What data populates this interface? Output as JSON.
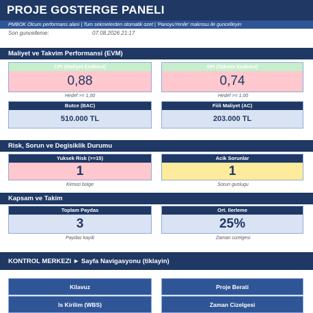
{
  "header": {
    "title": "PROJE GOSTERGE PANELI",
    "subtitle": "PMBOK Olcum performans alani  |  Tum sekmelerden otomatik ozet  |  'PanoyuYenile' makrosu ile guncelleyin",
    "last_updated_label": "Son guncelleme:",
    "last_updated": "07.08.2026 21:17"
  },
  "sections": [
    {
      "title": "Maliyet ve Takvim Performansi (EVM)",
      "cards": [
        {
          "label": "CPI (Maliyet Endeksi)",
          "value": "0,88",
          "note": "Hedef >= 1,00"
        },
        {
          "label": "SPI (Takvim Endeksi)",
          "value": "0,74",
          "note": "Hedef >= 1,00"
        },
        {
          "label": "Butce (BAC)",
          "value": "510.000 TL"
        },
        {
          "label": "Fiili Maliyet (AC)",
          "value": "203.000 TL"
        }
      ]
    },
    {
      "title": "Risk, Sorun ve Degisiklik Durumu",
      "cards": [
        {
          "label": "Yuksek Risk (>=15)",
          "value": "1",
          "note": "Kirmizi bolge"
        },
        {
          "label": "Acik Sorunlar",
          "value": "1",
          "note": "Sorun gunlugu"
        }
      ]
    },
    {
      "title": "Kapsam ve Takim",
      "cards": [
        {
          "label": "Toplam Paydas",
          "value": "3",
          "note": "Paydas kaydi"
        },
        {
          "label": "Ort. Ilerleme",
          "value": "25%",
          "note": "Zaman cizelgesi"
        }
      ]
    }
  ],
  "control": {
    "title": "KONTROL MERKEZI  ►  Sayfa Navigasyonu (tiklayin)",
    "buttons": [
      "Kilavuz",
      "Proje Berati",
      "Is Kirilim (WBS)",
      "Zaman Cizelgesi"
    ]
  }
}
